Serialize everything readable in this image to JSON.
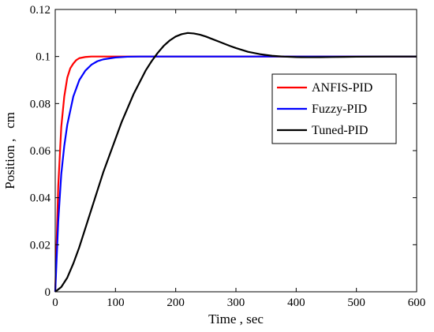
{
  "chart_data": {
    "type": "line",
    "title": "",
    "xlabel": "Time , sec",
    "ylabel": "Position ,   cm",
    "xlim": [
      0,
      600
    ],
    "ylim": [
      0,
      0.12
    ],
    "x_ticks": [
      "0",
      "100",
      "200",
      "300",
      "400",
      "500",
      "600"
    ],
    "y_ticks": [
      "0",
      "0.02",
      "0.04",
      "0.06",
      "0.08",
      "0.1",
      "0.12"
    ],
    "grid": false,
    "legend_position": "right",
    "series": [
      {
        "name": "ANFIS-PID",
        "color": "#ff0000",
        "x": [
          0,
          5,
          10,
          15,
          20,
          25,
          30,
          35,
          40,
          50,
          60,
          80,
          100,
          150,
          200,
          300,
          400,
          500,
          600
        ],
        "y": [
          0,
          0.045,
          0.07,
          0.083,
          0.091,
          0.095,
          0.097,
          0.0985,
          0.0993,
          0.0998,
          0.1,
          0.1,
          0.1,
          0.1,
          0.1,
          0.1,
          0.1,
          0.1,
          0.1
        ]
      },
      {
        "name": "Fuzzy-PID",
        "color": "#0000ff",
        "x": [
          0,
          5,
          10,
          15,
          20,
          30,
          40,
          50,
          60,
          70,
          80,
          100,
          120,
          140,
          160,
          200,
          300,
          400,
          500,
          600
        ],
        "y": [
          0,
          0.03,
          0.05,
          0.062,
          0.071,
          0.083,
          0.09,
          0.094,
          0.0965,
          0.098,
          0.0988,
          0.0996,
          0.0999,
          0.1,
          0.1,
          0.1,
          0.1,
          0.1,
          0.1,
          0.1
        ]
      },
      {
        "name": "Tuned-PID",
        "color": "#000000",
        "x": [
          0,
          10,
          20,
          30,
          40,
          50,
          60,
          70,
          80,
          90,
          100,
          110,
          120,
          130,
          140,
          150,
          160,
          170,
          180,
          190,
          200,
          210,
          220,
          230,
          240,
          250,
          260,
          270,
          280,
          290,
          300,
          320,
          340,
          360,
          380,
          400,
          420,
          440,
          460,
          480,
          500,
          550,
          600
        ],
        "y": [
          0,
          0.002,
          0.006,
          0.012,
          0.019,
          0.027,
          0.035,
          0.043,
          0.051,
          0.058,
          0.065,
          0.072,
          0.078,
          0.084,
          0.089,
          0.094,
          0.098,
          0.1015,
          0.1045,
          0.1068,
          0.1085,
          0.1095,
          0.11,
          0.1098,
          0.1093,
          0.1085,
          0.1075,
          0.1065,
          0.1055,
          0.1045,
          0.1036,
          0.102,
          0.101,
          0.1003,
          0.09995,
          0.09975,
          0.0997,
          0.09972,
          0.09978,
          0.09985,
          0.0999,
          0.1,
          0.1
        ]
      }
    ]
  }
}
